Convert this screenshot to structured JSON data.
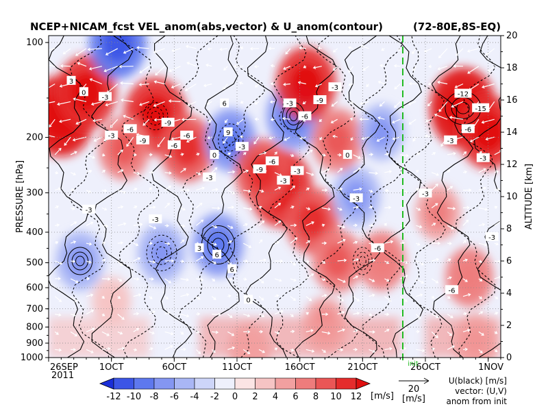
{
  "title": "NCEP+NICAM_fcst VEL_anom(abs,vector) & U_anom(contour)",
  "region": "(72-80E,8S-EQ)",
  "ylabel_left": "PRESSURE [hPa]",
  "ylabel_right": "ALTITUDE [km]",
  "year_label": "2011",
  "init_marker_label": "init",
  "ref_vector": {
    "value": "20",
    "unit": "[m/s]"
  },
  "legend_note": [
    "U(black) [m/s]",
    "vector: (U,V)",
    "anom from init"
  ],
  "colorbar": {
    "unit": "[m/s]",
    "ticks": [
      "-12",
      "-10",
      "-8",
      "-6",
      "-4",
      "-2",
      "0",
      "2",
      "4",
      "6",
      "8",
      "10",
      "12"
    ],
    "colors": [
      "#1a2ed8",
      "#3c55e6",
      "#5e78ee",
      "#8496f2",
      "#a9b6f5",
      "#cdd5f9",
      "#eef0fc",
      "#fbe4e4",
      "#f6c4c4",
      "#f2a0a0",
      "#ee7c7c",
      "#ea5656",
      "#e52c2c",
      "#e01010"
    ]
  },
  "chart_data": {
    "type": "heatmap",
    "title": "NCEP+NICAM_fcst VEL_anom(abs,vector) & U_anom(contour)",
    "x_ticks": [
      "26SEP",
      "1OCT",
      "6OCT",
      "11OCT",
      "16OCT",
      "21OCT",
      "26OCT",
      "1NOV"
    ],
    "x_range": [
      "2011-09-26",
      "2011-11-01"
    ],
    "init_date": "2011-10-24",
    "pressure_ticks": [
      100,
      200,
      300,
      400,
      500,
      600,
      700,
      800,
      900,
      1000
    ],
    "altitude_ticks": [
      0,
      2,
      4,
      6,
      8,
      10,
      12,
      14,
      16,
      18,
      20
    ],
    "ylim_altitude_km": [
      0,
      20
    ],
    "contour_labels": [
      "3",
      "0",
      "-3",
      "-3",
      "-6",
      "-9",
      "-9",
      "-6",
      "-6",
      "-3",
      "0",
      "6",
      "9",
      "-3",
      "-9",
      "-6",
      "-3",
      "-3",
      "3",
      "6",
      "6",
      "-3",
      "-6",
      "-9",
      "-3",
      "0",
      "-3",
      "-6",
      "-12",
      "-15",
      "-3",
      "-6",
      "-3",
      "-3",
      "-6",
      "-3",
      "0",
      "-3",
      "-3"
    ],
    "anomaly_blobs": [
      {
        "t": 1.0,
        "alt": 15.0,
        "v": 12
      },
      {
        "t": 3.0,
        "alt": 16.5,
        "v": 10
      },
      {
        "t": 8.5,
        "alt": 15.0,
        "v": 11
      },
      {
        "t": 6.0,
        "alt": 13.0,
        "v": 7
      },
      {
        "t": 11.0,
        "alt": 13.0,
        "v": 8
      },
      {
        "t": 5.5,
        "alt": 19.5,
        "v": -9
      },
      {
        "t": 2.5,
        "alt": 6.0,
        "v": -6
      },
      {
        "t": 9.0,
        "alt": 6.5,
        "v": -6
      },
      {
        "t": 13.5,
        "alt": 7.0,
        "v": -7
      },
      {
        "t": 14.5,
        "alt": 13.5,
        "v": -7
      },
      {
        "t": 19.5,
        "alt": 15.0,
        "v": -8
      },
      {
        "t": 18.5,
        "alt": 10.5,
        "v": 11
      },
      {
        "t": 17.0,
        "alt": 11.5,
        "v": 8
      },
      {
        "t": 21.0,
        "alt": 8.5,
        "v": 8
      },
      {
        "t": 20.5,
        "alt": 17.0,
        "v": 10
      },
      {
        "t": 23.0,
        "alt": 13.5,
        "v": 7
      },
      {
        "t": 24.5,
        "alt": 10.0,
        "v": -6
      },
      {
        "t": 26.5,
        "alt": 14.0,
        "v": -5
      },
      {
        "t": 23.0,
        "alt": 6.0,
        "v": 7
      },
      {
        "t": 26.5,
        "alt": 6.0,
        "v": 6
      },
      {
        "t": 33.0,
        "alt": 15.5,
        "v": 12
      },
      {
        "t": 35.0,
        "alt": 14.0,
        "v": 10
      },
      {
        "t": 31.0,
        "alt": 9.0,
        "v": 5
      },
      {
        "t": 33.5,
        "alt": 5.0,
        "v": 6
      },
      {
        "t": 34.0,
        "alt": 1.0,
        "v": 5
      },
      {
        "t": 16.0,
        "alt": 0.5,
        "v": 4
      },
      {
        "t": 22.0,
        "alt": 2.0,
        "v": 5
      },
      {
        "t": 5.0,
        "alt": 3.5,
        "v": 3
      }
    ]
  }
}
